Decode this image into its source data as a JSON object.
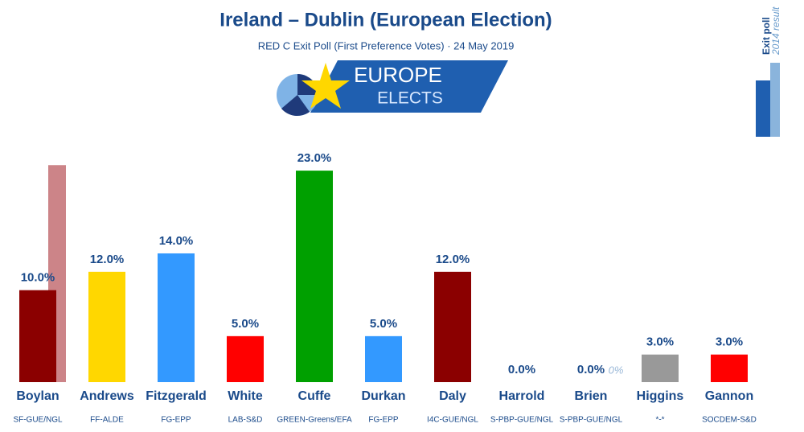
{
  "chart_data": {
    "type": "bar",
    "title": "Ireland – Dublin (European Election)",
    "subtitle": "RED C Exit Poll (First Preference Votes) · 24 May 2019",
    "logo": [
      "EUROPE",
      "ELECTS"
    ],
    "categories": [
      "Boylan",
      "Andrews",
      "Fitzgerald",
      "White",
      "Cuffe",
      "Durkan",
      "Daly",
      "Harrold",
      "Brien",
      "Higgins",
      "Gannon"
    ],
    "parties": [
      "SF-GUE/NGL",
      "FF-ALDE",
      "FG-EPP",
      "LAB-S&D",
      "GREEN-Greens/EFA",
      "FG-EPP",
      "I4C-GUE/NGL",
      "S-PBP-GUE/NGL",
      "S-PBP-GUE/NGL",
      "*-*",
      "SOCDEM-S&D"
    ],
    "series": [
      {
        "name": "Exit poll",
        "colors": [
          "#8b0000",
          "#ffd700",
          "#3399ff",
          "#ff0000",
          "#00a000",
          "#3399ff",
          "#8b0000",
          "#8b0000",
          "#8b0000",
          "#999999",
          "#ff0000"
        ],
        "values": [
          10,
          12,
          14,
          5,
          23,
          5,
          12,
          0,
          0,
          3,
          3
        ],
        "value_labels": [
          "10.0%",
          "12.0%",
          "14.0%",
          "5.0%",
          "23.0%",
          "5.0%",
          "12.0%",
          "0.0%",
          "0.0%",
          "3.0%",
          "3.0%"
        ]
      },
      {
        "name": "2014 result",
        "color": "#cc8488",
        "values": [
          23.6,
          null,
          null,
          null,
          null,
          null,
          null,
          null,
          0,
          null,
          null
        ],
        "value_labels": [
          null,
          null,
          null,
          null,
          null,
          null,
          null,
          null,
          "0%",
          null,
          null
        ]
      }
    ]
  }
}
